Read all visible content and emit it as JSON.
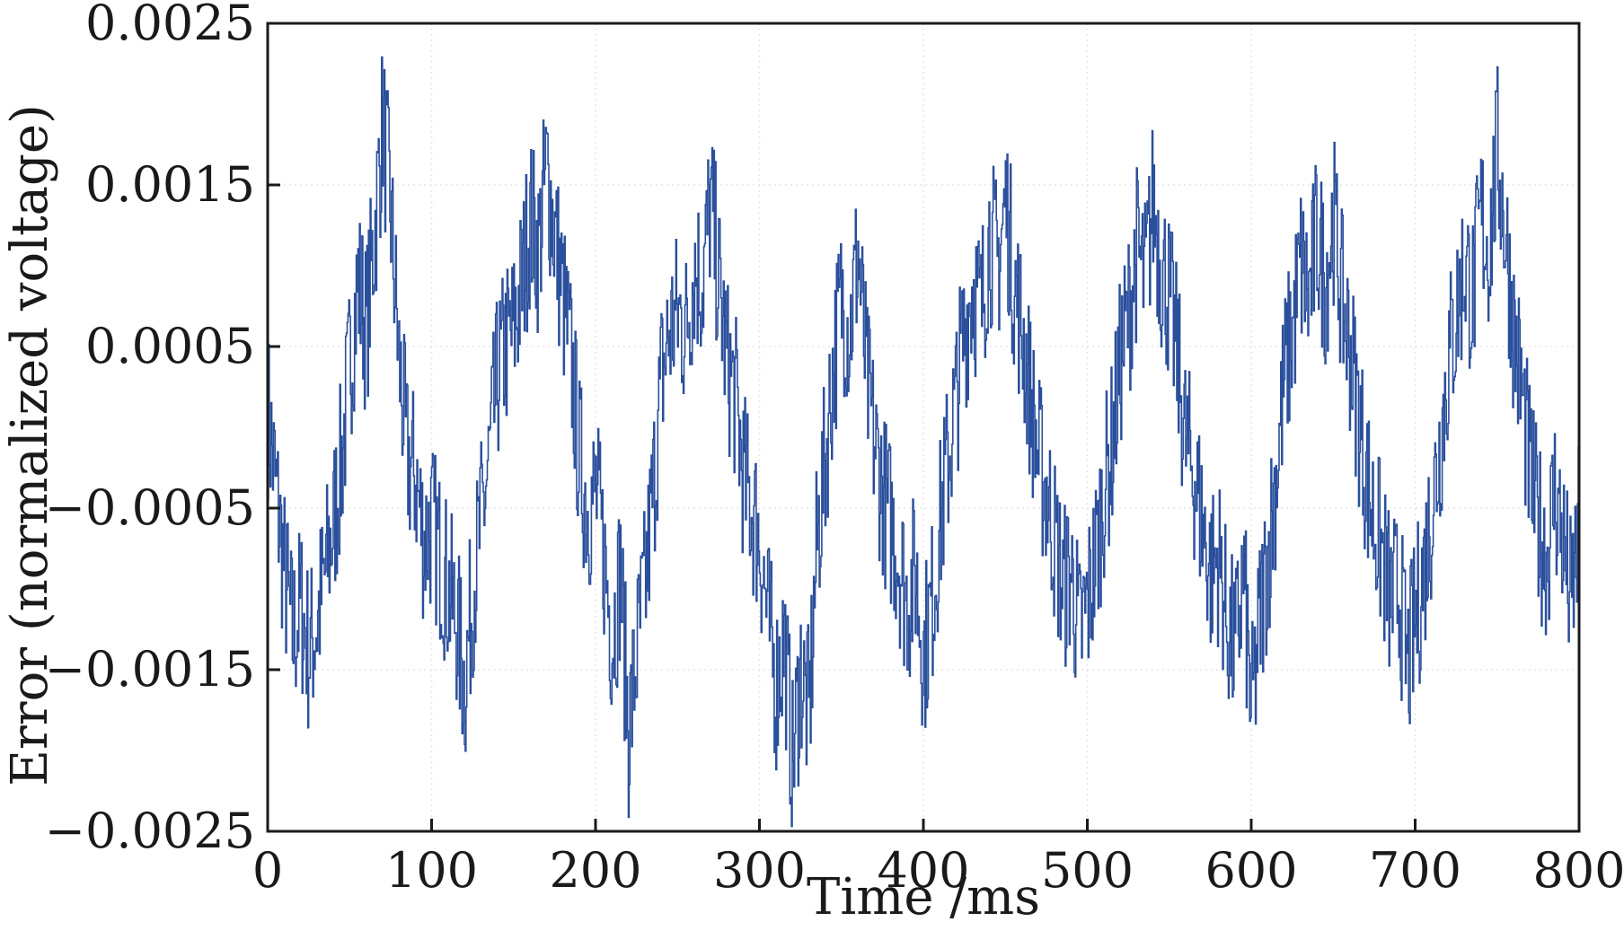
{
  "chart_data": {
    "type": "line",
    "title": "",
    "xlabel": "Time /ms",
    "ylabel": "Error (normalized voltage)",
    "xlim": [
      0,
      800
    ],
    "ylim": [
      -0.0025,
      0.0025
    ],
    "x_ticks": [
      0,
      100,
      200,
      300,
      400,
      500,
      600,
      700,
      800
    ],
    "x_tick_labels": [
      "0",
      "100",
      "200",
      "300",
      "400",
      "500",
      "600",
      "700",
      "800"
    ],
    "y_ticks": [
      -0.0025,
      -0.0015,
      -0.0005,
      0.0005,
      0.0015,
      0.0025
    ],
    "y_tick_labels": [
      "−0.0025",
      "−0.0015",
      "−0.0005",
      "0.0005",
      "0.0015",
      "0.0025"
    ],
    "grid": true,
    "legend": "none",
    "series": [
      {
        "color": "#2a4f9c",
        "description_period_ms": 96,
        "x": [
          0,
          5,
          10,
          15,
          20,
          25,
          30,
          35,
          40,
          45,
          50,
          55,
          60,
          65,
          70,
          75,
          80,
          85,
          90,
          95,
          100,
          105,
          110,
          115,
          120,
          125,
          130,
          135,
          140,
          145,
          150,
          155,
          160,
          165,
          170,
          175,
          180,
          185,
          190,
          195,
          200,
          205,
          210,
          215,
          220,
          225,
          230,
          235,
          240,
          245,
          250,
          255,
          260,
          265,
          270,
          275,
          280,
          285,
          290,
          295,
          300,
          305,
          310,
          315,
          320,
          325,
          330,
          335,
          340,
          345,
          350,
          355,
          360,
          365,
          370,
          375,
          380,
          385,
          390,
          395,
          400,
          405,
          410,
          415,
          420,
          425,
          430,
          435,
          440,
          445,
          450,
          455,
          460,
          465,
          470,
          475,
          480,
          485,
          490,
          495,
          500,
          505,
          510,
          515,
          520,
          525,
          530,
          535,
          540,
          545,
          550,
          555,
          560,
          565,
          570,
          575,
          580,
          585,
          590,
          595,
          600,
          605,
          610,
          615,
          620,
          625,
          630,
          635,
          640,
          645,
          650,
          655,
          660,
          665,
          670,
          675,
          680,
          685,
          690,
          695,
          700,
          705,
          710,
          715,
          720,
          725,
          730,
          735,
          740,
          745,
          750,
          755,
          760,
          765,
          770,
          775,
          780,
          785,
          790,
          795,
          800
        ],
        "y": [
          0.0001,
          -0.0004,
          -0.0009,
          -0.0013,
          -0.0011,
          -0.0014,
          -0.0012,
          -0.0009,
          -0.0006,
          -0.0002,
          0.0004,
          0.0009,
          0.0006,
          0.0012,
          0.0019,
          0.0013,
          0.0004,
          -0.0002,
          -0.0003,
          -0.0007,
          -0.0006,
          -0.0008,
          -0.001,
          -0.0012,
          -0.0016,
          -0.001,
          -0.0006,
          -0.0002,
          0.0003,
          0.0005,
          0.0006,
          0.0009,
          0.0013,
          0.0011,
          0.0016,
          0.0012,
          0.0008,
          0.0004,
          -0.0002,
          -0.0005,
          -0.0004,
          -0.0008,
          -0.0013,
          -0.0009,
          -0.0019,
          -0.0014,
          -0.001,
          -0.0004,
          0.0003,
          0.0006,
          0.0007,
          0.0006,
          0.001,
          0.0009,
          0.0014,
          0.0009,
          0.0004,
          0.0002,
          -0.0003,
          -0.0005,
          -0.0007,
          -0.0012,
          -0.0016,
          -0.0013,
          -0.0021,
          -0.0015,
          -0.0018,
          -0.0007,
          -0.0002,
          0.0004,
          0.0008,
          0.0006,
          0.0011,
          0.0003,
          -0.0001,
          -0.0004,
          -0.0006,
          -0.0008,
          -0.0011,
          -0.0009,
          -0.0014,
          -0.0011,
          -0.0006,
          -0.0002,
          0.0002,
          0.0006,
          0.0009,
          0.0007,
          0.0012,
          0.001,
          0.0014,
          0.0009,
          0.0006,
          0.0002,
          -0.0002,
          -0.0004,
          -0.0007,
          -0.001,
          -0.0009,
          -0.0013,
          -0.0011,
          -0.0008,
          -0.0004,
          -0.0001,
          0.0004,
          0.0007,
          0.0011,
          0.0009,
          0.0014,
          0.001,
          0.0008,
          0.0004,
          -0.0001,
          -0.0003,
          -0.0006,
          -0.0009,
          -0.0008,
          -0.0012,
          -0.0014,
          -0.0009,
          -0.0018,
          -0.0012,
          -0.0008,
          -0.0003,
          0.0003,
          0.0006,
          0.001,
          0.0008,
          0.0012,
          0.0009,
          0.0013,
          0.0008,
          0.0005,
          0.0001,
          -0.0003,
          -0.0006,
          -0.0008,
          -0.0011,
          -0.001,
          -0.0015,
          -0.0012,
          -0.0009,
          -0.0005,
          -0.0001,
          0.0004,
          0.0007,
          0.001,
          0.0008,
          0.0013,
          0.0011,
          0.0017,
          0.0012,
          0.0006,
          0.0002,
          -0.0003,
          -0.0006,
          -0.0008,
          -0.0004,
          -0.0007,
          -0.0011,
          -0.0006
        ]
      }
    ]
  }
}
